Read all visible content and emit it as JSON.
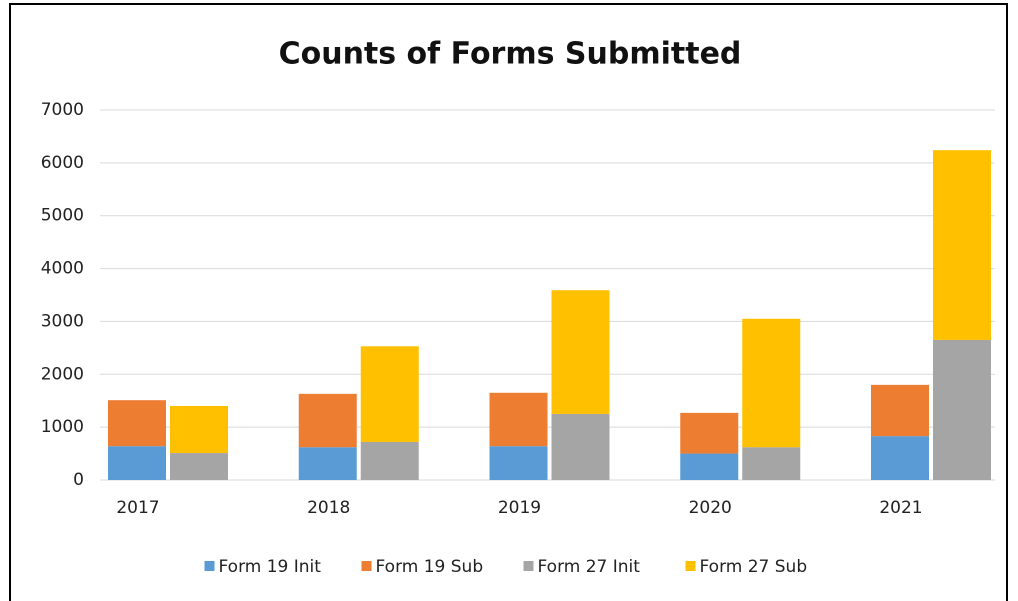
{
  "chart_data": {
    "type": "bar",
    "title": "Counts of Forms Submitted",
    "categories": [
      "2017",
      "2018",
      "2019",
      "2020",
      "2021"
    ],
    "series": [
      {
        "name": "Form 19 Init",
        "color": "#5b9bd5",
        "values": [
          640,
          620,
          640,
          500,
          830
        ]
      },
      {
        "name": "Form 19 Sub",
        "color": "#ed7d31",
        "values": [
          870,
          1010,
          1010,
          770,
          970
        ]
      },
      {
        "name": "Form 27 Init",
        "color": "#a5a5a5",
        "values": [
          510,
          720,
          1250,
          620,
          2650
        ]
      },
      {
        "name": "Form 27 Sub",
        "color": "#ffc000",
        "values": [
          890,
          1810,
          2340,
          2430,
          3590
        ]
      }
    ],
    "ylim": [
      0,
      7000
    ],
    "yticks": [
      0,
      1000,
      2000,
      3000,
      4000,
      5000,
      6000,
      7000
    ],
    "grid": true,
    "legend": "bottom"
  }
}
